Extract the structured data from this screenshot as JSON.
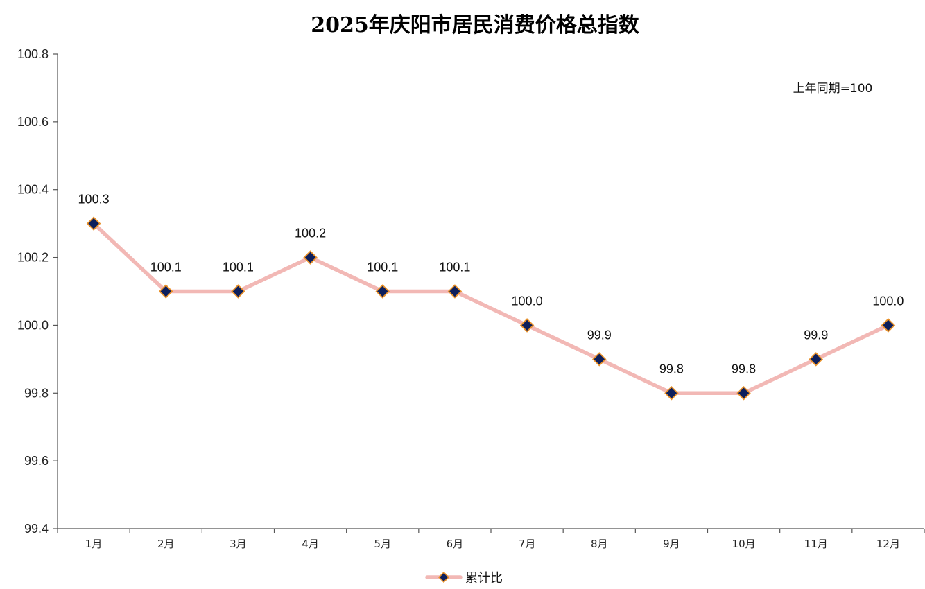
{
  "chart_data": {
    "type": "line",
    "title": "2025年庆阳市居民消费价格总指数",
    "annotation": "上年同期=100",
    "categories": [
      "1月",
      "2月",
      "3月",
      "4月",
      "5月",
      "6月",
      "7月",
      "8月",
      "9月",
      "10月",
      "11月",
      "12月"
    ],
    "series": [
      {
        "name": "累计比",
        "values": [
          100.3,
          100.1,
          100.1,
          100.2,
          100.1,
          100.1,
          100.0,
          99.9,
          99.8,
          99.8,
          99.9,
          100.0
        ],
        "labels": [
          "100.3",
          "100.1",
          "100.1",
          "100.2",
          "100.1",
          "100.1",
          "100.0",
          "99.9",
          "99.8",
          "99.8",
          "99.9",
          "100.0"
        ],
        "line_color": "#f2b8b5",
        "marker_fill": "#0d1f5c",
        "marker_stroke": "#e8912a"
      }
    ],
    "ylim": [
      99.4,
      100.8
    ],
    "yticks": [
      "99.4",
      "99.6",
      "99.8",
      "100.0",
      "100.2",
      "100.4",
      "100.6",
      "100.8"
    ],
    "legend_position": "bottom",
    "grid": false
  }
}
